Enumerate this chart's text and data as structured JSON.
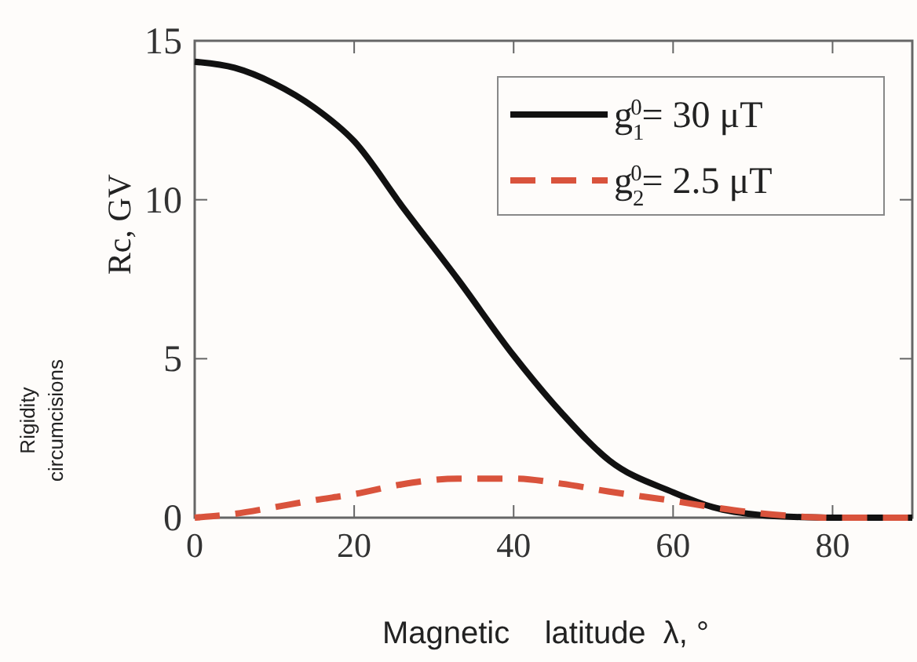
{
  "chart_data": {
    "type": "line",
    "xlabel": "Magnetic    latitude  λ, °",
    "ylabel": "Rigidity circumcisions Rc, GV",
    "xlim": [
      0,
      90
    ],
    "xticks": [
      0,
      20,
      40,
      60,
      80
    ],
    "ylim": [
      0,
      15
    ],
    "yticks": [
      0,
      5,
      10,
      15
    ],
    "grid": false,
    "legend": "top right",
    "marker": "none",
    "series": [
      {
        "name": "g$_{1}$$^{0}$= 30 μT",
        "color": "#111111",
        "line_style": "solid",
        "x": [
          0,
          5,
          10,
          15,
          20,
          26,
          33,
          40,
          46,
          52,
          60,
          65,
          71,
          76,
          80,
          85,
          90
        ],
        "values": [
          14.34,
          14.15,
          13.65,
          12.9,
          11.84,
          9.8,
          7.5,
          5.1,
          3.3,
          1.8,
          0.8,
          0.33,
          0.08,
          0.02,
          0,
          0,
          0
        ]
      },
      {
        "name": "g$_{2}$$^{0}$= 2.5 μT",
        "color": "#d9533c",
        "line_style": "dashed",
        "x": [
          0,
          5,
          10,
          15,
          20,
          26,
          33,
          40,
          46,
          52,
          60,
          65,
          70,
          75,
          80,
          85,
          90
        ],
        "values": [
          0,
          0.12,
          0.33,
          0.55,
          0.74,
          1.05,
          1.23,
          1.23,
          1.07,
          0.82,
          0.53,
          0.33,
          0.16,
          0.05,
          0,
          0,
          0
        ]
      }
    ]
  }
}
